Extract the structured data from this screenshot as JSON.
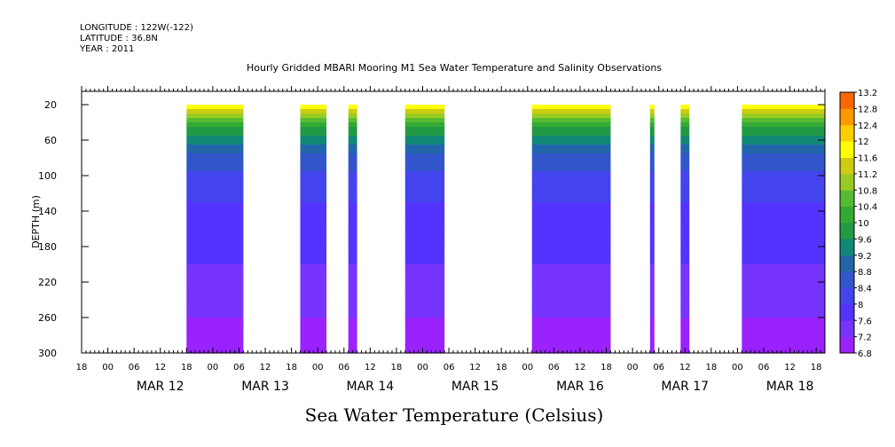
{
  "header": {
    "longitude": "LONGITUDE : 122W(-122)",
    "latitude": "LATITUDE : 36.8N",
    "year": "YEAR : 2011"
  },
  "chart_data": {
    "type": "heatmap",
    "title": "Hourly Gridded MBARI Mooring M1 Sea Water Temperature and Salinity Observations",
    "xlabel": "Sea Water Temperature (Celsius)",
    "ylabel": "DEPTH (m)",
    "y_axis": {
      "direction": "inverted",
      "ylim": [
        300,
        5
      ],
      "ticks": [
        20,
        60,
        100,
        140,
        180,
        220,
        260,
        300
      ],
      "tick_labels": [
        "20",
        "60",
        "100",
        "140",
        "180",
        "220",
        "260",
        "300"
      ]
    },
    "x_axis": {
      "unit": "hour",
      "start": "2011-03-11 18:00",
      "xlim_hours": [
        0,
        170
      ],
      "hour_ticks": [
        0,
        6,
        12,
        18
      ],
      "hour_tick_labels": [
        "00",
        "06",
        "12",
        "18"
      ],
      "day_labels": [
        "MAR 12",
        "MAR 13",
        "MAR 14",
        "MAR 15",
        "MAR 16",
        "MAR 17",
        "MAR 18"
      ],
      "day_label_hour": 12
    },
    "colorbar": {
      "levels": [
        6.8,
        7.2,
        7.6,
        8,
        8.4,
        8.8,
        9.2,
        9.6,
        10,
        10.4,
        10.8,
        11.2,
        11.6,
        12,
        12.4,
        12.8,
        13.2
      ],
      "labels": [
        "6.8",
        "7.2",
        "7.6",
        "8",
        "8.4",
        "8.8",
        "9.2",
        "9.6",
        "10",
        "10.4",
        "10.8",
        "11.2",
        "11.6",
        "12",
        "12.4",
        "12.8",
        "13.2"
      ],
      "colors": [
        "#cc00ff",
        "#9922ff",
        "#7733ff",
        "#5533ff",
        "#4444ee",
        "#3355cc",
        "#2266aa",
        "#118877",
        "#229944",
        "#33aa33",
        "#55bb33",
        "#99cc22",
        "#cccc11",
        "#ffff00",
        "#ffcc00",
        "#ff9900",
        "#ff6600",
        "#ff2200",
        "#dd0000",
        "#aa0000"
      ]
    },
    "data_segments": [
      {
        "start": "2011-03-12 18:00",
        "end": "2011-03-13 07:00"
      },
      {
        "start": "2011-03-13 20:00",
        "end": "2011-03-14 02:00"
      },
      {
        "start": "2011-03-14 07:00",
        "end": "2011-03-14 09:00"
      },
      {
        "start": "2011-03-14 20:00",
        "end": "2011-03-15 05:00"
      },
      {
        "start": "2011-03-16 01:00",
        "end": "2011-03-16 19:00"
      },
      {
        "start": "2011-03-17 04:00",
        "end": "2011-03-17 05:00"
      },
      {
        "start": "2011-03-17 11:00",
        "end": "2011-03-17 13:00"
      },
      {
        "start": "2011-03-18 01:00",
        "end": "2011-03-18 20:00"
      }
    ],
    "temperature_profile": {
      "depths": [
        20,
        30,
        40,
        50,
        60,
        70,
        80,
        100,
        120,
        140,
        160,
        180,
        200,
        220,
        240,
        260,
        280,
        300
      ],
      "values": [
        11.8,
        11.0,
        10.3,
        9.8,
        9.4,
        9.0,
        8.6,
        8.3,
        8.1,
        7.9,
        7.8,
        7.7,
        7.6,
        7.5,
        7.4,
        7.2,
        7.0,
        6.9
      ]
    }
  }
}
